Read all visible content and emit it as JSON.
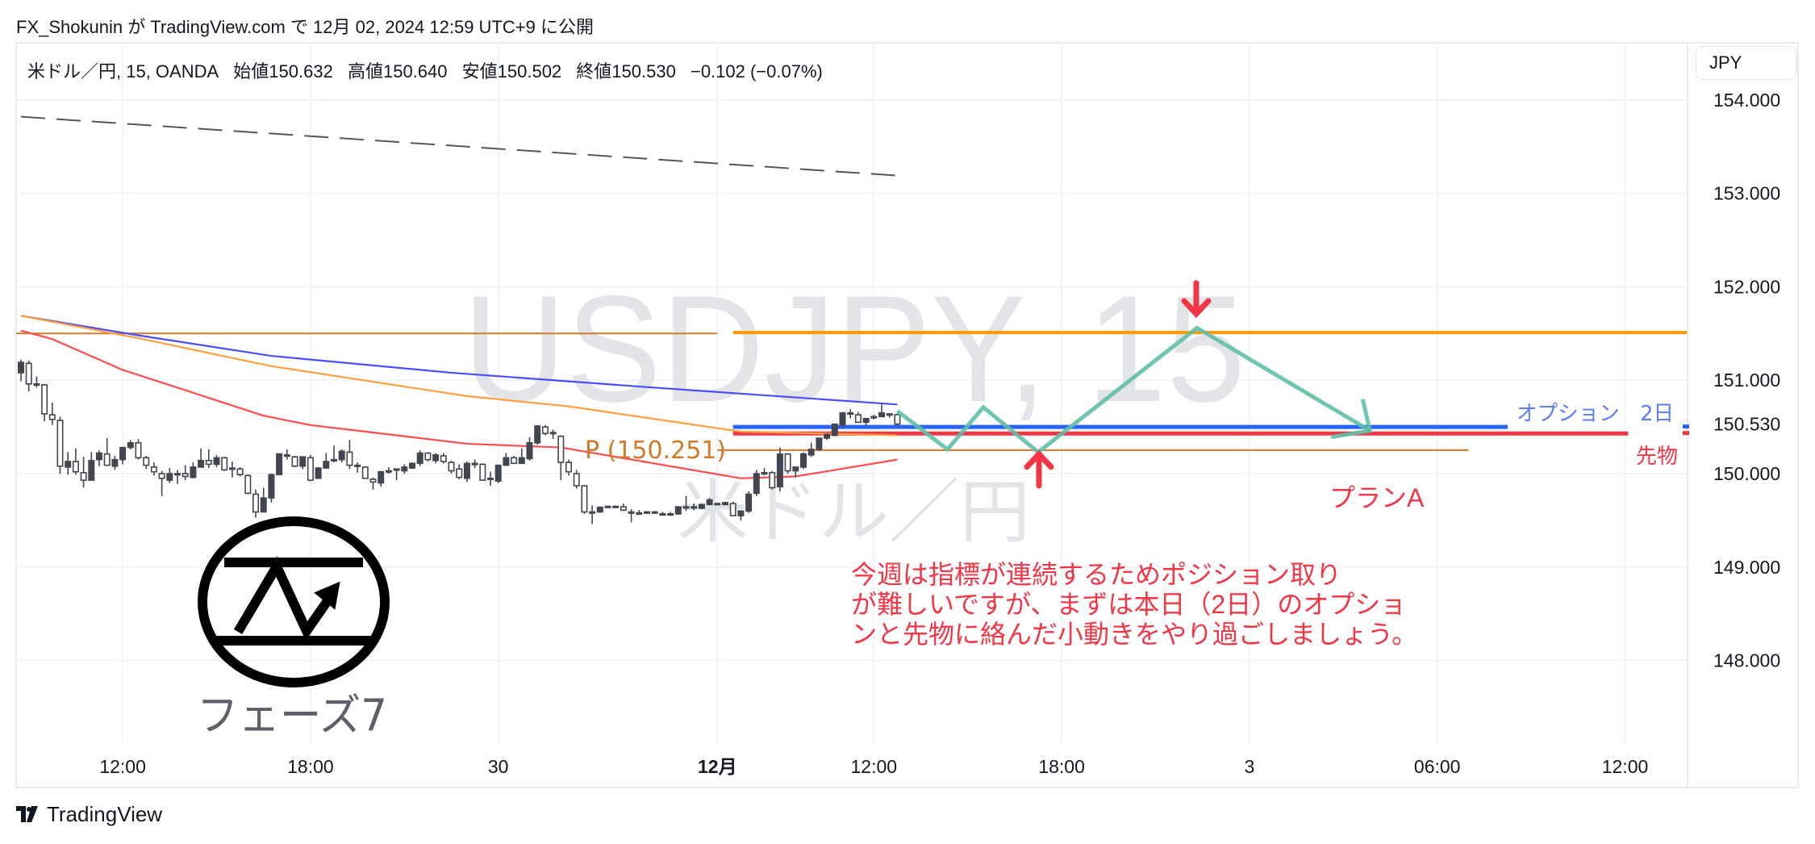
{
  "header": {
    "published": "FX_Shokunin が TradingView.com で 12月 02, 2024 12:59 UTC+9 に公開"
  },
  "legend": {
    "symbol": "米ドル／円, 15, OANDA",
    "open_label": "始値",
    "open": "150.632",
    "high_label": "高値",
    "high": "150.640",
    "low_label": "安値",
    "low": "150.502",
    "close_label": "終値",
    "close": "150.530",
    "change": "−0.102 (−0.07%)"
  },
  "currency_button": "JPY",
  "watermark": {
    "line1": "USDJPY, 15",
    "line2": "米ドル／円"
  },
  "logo": {
    "text": "フェーズ7"
  },
  "footer": {
    "brand": "TradingView"
  },
  "annotations": {
    "plan": "プランA",
    "note_lines": [
      "今週は指標が連続するためポジション取り",
      "が難しいですが、まずは本日（2日）のオプショ",
      "ンと先物に絡んだ小動きをやり過ごしましょう。"
    ],
    "pivot_label": "P (150.251)",
    "option_label": "オプション　2日",
    "futures_label": "先物"
  },
  "chart_data": {
    "type": "candlestick",
    "symbol": "USDJPY",
    "interval": "15",
    "grid": true,
    "colors": {
      "candle": "#434651",
      "grid": "#f0f3fa",
      "axis_text": "#131722"
    },
    "price_ticks": [
      "154.000",
      "153.000",
      "152.000",
      "151.000",
      "150.000",
      "149.000",
      "148.000"
    ],
    "price_tick_values": [
      154,
      153,
      152,
      151,
      150,
      149,
      148
    ],
    "last_price": {
      "value": 150.53,
      "label": "150.530"
    },
    "time_ticks": [
      {
        "label": "12:00",
        "bar": 13
      },
      {
        "label": "18:00",
        "bar": 37
      },
      {
        "label": "30",
        "bar": 61
      },
      {
        "label": "12月",
        "bar": 89,
        "bold": true
      },
      {
        "label": "12:00",
        "bar": 109
      },
      {
        "label": "18:00",
        "bar": 133
      },
      {
        "label": "3",
        "bar": 157
      },
      {
        "label": "06:00",
        "bar": 181
      },
      {
        "label": "12:00",
        "bar": 205
      }
    ],
    "candles_ohlc": [
      [
        151.08,
        151.22,
        150.99,
        151.19
      ],
      [
        151.18,
        151.21,
        150.88,
        150.96
      ],
      [
        150.96,
        151.04,
        150.92,
        150.96
      ],
      [
        150.95,
        150.96,
        150.56,
        150.64
      ],
      [
        150.63,
        150.76,
        150.52,
        150.58
      ],
      [
        150.57,
        150.61,
        150.0,
        150.08
      ],
      [
        150.07,
        150.23,
        149.99,
        150.13
      ],
      [
        150.13,
        150.27,
        149.99,
        150.02
      ],
      [
        150.01,
        150.18,
        149.85,
        149.93
      ],
      [
        149.93,
        150.23,
        149.93,
        150.14
      ],
      [
        150.15,
        150.25,
        150.08,
        150.22
      ],
      [
        150.21,
        150.38,
        150.09,
        150.09
      ],
      [
        150.08,
        150.19,
        150.04,
        150.15
      ],
      [
        150.15,
        150.28,
        150.1,
        150.28
      ],
      [
        150.28,
        150.36,
        150.26,
        150.33
      ],
      [
        150.33,
        150.37,
        150.15,
        150.17
      ],
      [
        150.17,
        150.19,
        150.05,
        150.09
      ],
      [
        150.07,
        150.12,
        149.98,
        150.02
      ],
      [
        150.0,
        150.03,
        149.76,
        149.95
      ],
      [
        149.93,
        150.06,
        149.9,
        150.0
      ],
      [
        150.0,
        150.04,
        149.89,
        150.0
      ],
      [
        150.0,
        150.09,
        149.93,
        149.97
      ],
      [
        149.96,
        150.12,
        149.95,
        150.07
      ],
      [
        150.07,
        150.27,
        150.07,
        150.14
      ],
      [
        150.14,
        150.26,
        150.06,
        150.1
      ],
      [
        150.1,
        150.2,
        150.07,
        150.17
      ],
      [
        150.17,
        150.18,
        150.03,
        150.04
      ],
      [
        150.06,
        150.13,
        149.96,
        150.06
      ],
      [
        150.05,
        150.07,
        149.97,
        149.99
      ],
      [
        149.98,
        149.99,
        149.78,
        149.79
      ],
      [
        149.78,
        149.83,
        149.53,
        149.59
      ],
      [
        149.59,
        149.85,
        149.59,
        149.74
      ],
      [
        149.74,
        150.0,
        149.69,
        149.99
      ],
      [
        149.99,
        150.22,
        149.99,
        150.21
      ],
      [
        150.2,
        150.26,
        150.15,
        150.2
      ],
      [
        150.18,
        150.19,
        150.07,
        150.08
      ],
      [
        150.08,
        150.18,
        150.05,
        150.18
      ],
      [
        150.17,
        150.2,
        149.92,
        149.93
      ],
      [
        149.95,
        150.07,
        149.95,
        150.06
      ],
      [
        150.06,
        150.22,
        150.06,
        150.13
      ],
      [
        150.15,
        150.3,
        150.12,
        150.15
      ],
      [
        150.15,
        150.26,
        150.12,
        150.24
      ],
      [
        150.23,
        150.36,
        150.05,
        150.09
      ],
      [
        150.09,
        150.12,
        150.01,
        150.09
      ],
      [
        150.07,
        150.08,
        149.95,
        149.95
      ],
      [
        149.94,
        149.96,
        149.83,
        149.91
      ],
      [
        149.9,
        150.03,
        149.86,
        150.02
      ],
      [
        150.03,
        150.07,
        150.0,
        150.03
      ],
      [
        150.05,
        150.05,
        149.93,
        150.05
      ],
      [
        150.03,
        150.1,
        150.0,
        150.07
      ],
      [
        150.06,
        150.12,
        150.05,
        150.11
      ],
      [
        150.11,
        150.25,
        150.08,
        150.22
      ],
      [
        150.22,
        150.23,
        150.13,
        150.15
      ],
      [
        150.14,
        150.22,
        150.11,
        150.2
      ],
      [
        150.19,
        150.22,
        150.11,
        150.13
      ],
      [
        150.12,
        150.14,
        150.0,
        150.03
      ],
      [
        150.05,
        150.1,
        149.94,
        149.96
      ],
      [
        149.95,
        150.13,
        149.91,
        150.11
      ],
      [
        150.11,
        150.15,
        150.06,
        150.11
      ],
      [
        150.1,
        150.11,
        149.93,
        149.93
      ],
      [
        149.95,
        150.02,
        149.87,
        149.95
      ],
      [
        149.92,
        150.09,
        149.9,
        150.09
      ],
      [
        150.09,
        150.22,
        150.09,
        150.17
      ],
      [
        150.17,
        150.19,
        150.11,
        150.11
      ],
      [
        150.11,
        150.27,
        150.11,
        150.17
      ],
      [
        150.16,
        150.39,
        150.14,
        150.33
      ],
      [
        150.33,
        150.52,
        150.31,
        150.51
      ],
      [
        150.5,
        150.52,
        150.41,
        150.43
      ],
      [
        150.44,
        150.47,
        150.37,
        150.44
      ],
      [
        150.4,
        150.41,
        149.93,
        150.12
      ],
      [
        150.12,
        150.15,
        149.98,
        150.02
      ],
      [
        150.0,
        150.04,
        149.84,
        149.87
      ],
      [
        149.87,
        149.87,
        149.57,
        149.59
      ],
      [
        149.59,
        149.66,
        149.46,
        149.59
      ],
      [
        149.59,
        149.65,
        149.58,
        149.64
      ],
      [
        149.65,
        149.66,
        149.64,
        149.65
      ],
      [
        149.65,
        149.66,
        149.64,
        149.65
      ],
      [
        149.645,
        149.68,
        149.6,
        149.61
      ],
      [
        149.59,
        149.62,
        149.48,
        149.59
      ],
      [
        149.58,
        149.61,
        149.56,
        149.58
      ],
      [
        149.59,
        149.6,
        149.57,
        149.59
      ],
      [
        149.59,
        149.6,
        149.57,
        149.59
      ],
      [
        149.57,
        149.59,
        149.55,
        149.57
      ],
      [
        149.57,
        149.59,
        149.55,
        149.57
      ],
      [
        149.57,
        149.65,
        149.56,
        149.645
      ],
      [
        149.645,
        149.76,
        149.6,
        149.645
      ],
      [
        149.645,
        149.68,
        149.61,
        149.645
      ],
      [
        149.63,
        149.68,
        149.62,
        149.67
      ],
      [
        149.67,
        149.74,
        149.66,
        149.72
      ],
      [
        149.68,
        149.69,
        149.67,
        149.68
      ],
      [
        149.67,
        149.7,
        149.66,
        149.69
      ],
      [
        149.68,
        149.7,
        149.55,
        149.55
      ],
      [
        149.55,
        149.6,
        149.5,
        149.6
      ],
      [
        149.6,
        149.81,
        149.58,
        149.78
      ],
      [
        149.79,
        150.04,
        149.76,
        150.0
      ],
      [
        150.01,
        150.06,
        149.98,
        150.01
      ],
      [
        150.01,
        150.03,
        149.83,
        149.85
      ],
      [
        149.86,
        150.28,
        149.81,
        150.21
      ],
      [
        150.21,
        150.22,
        150.0,
        150.03
      ],
      [
        150.03,
        150.07,
        149.96,
        150.07
      ],
      [
        150.07,
        150.23,
        150.05,
        150.21
      ],
      [
        150.2,
        150.33,
        150.18,
        150.26
      ],
      [
        150.26,
        150.38,
        150.24,
        150.38
      ],
      [
        150.38,
        150.43,
        150.36,
        150.42
      ],
      [
        150.41,
        150.53,
        150.4,
        150.53
      ],
      [
        150.52,
        150.66,
        150.48,
        150.65
      ],
      [
        150.65,
        150.69,
        150.59,
        150.65
      ],
      [
        150.63,
        150.66,
        150.55,
        150.55
      ],
      [
        150.55,
        150.59,
        150.51,
        150.59
      ],
      [
        150.61,
        150.63,
        150.58,
        150.61
      ],
      [
        150.61,
        150.74,
        150.61,
        150.65
      ],
      [
        150.64,
        150.64,
        150.6,
        150.64
      ],
      [
        150.632,
        150.64,
        150.502,
        150.53
      ]
    ],
    "moving_averages": [
      {
        "color": "#4a4cff",
        "points": [
          [
            0,
            151.69
          ],
          [
            15,
            151.48
          ],
          [
            32,
            151.26
          ],
          [
            55,
            151.08
          ],
          [
            81,
            150.92
          ],
          [
            112,
            150.74
          ]
        ]
      },
      {
        "color": "#ffa040",
        "points": [
          [
            0,
            151.69
          ],
          [
            15,
            151.45
          ],
          [
            32,
            151.15
          ],
          [
            57,
            150.83
          ],
          [
            70,
            150.72
          ],
          [
            92,
            150.45
          ],
          [
            112,
            150.41
          ]
        ]
      },
      {
        "color": "#ff4d4d",
        "points": [
          [
            0,
            151.53
          ],
          [
            4,
            151.44
          ],
          [
            13,
            151.11
          ],
          [
            20,
            150.92
          ],
          [
            31,
            150.62
          ],
          [
            37,
            150.52
          ],
          [
            44,
            150.45
          ],
          [
            57,
            150.32
          ],
          [
            66,
            150.29
          ],
          [
            69,
            150.28
          ],
          [
            92,
            149.95
          ],
          [
            99,
            149.97
          ],
          [
            112,
            150.15
          ]
        ]
      }
    ],
    "horizontal_lines": [
      {
        "name": "resistance-line-prev",
        "price": 151.5,
        "from_bar": -0.6,
        "to_bar": 89,
        "color": "#d4782a",
        "width": 2
      },
      {
        "name": "resistance-line",
        "price": 151.51,
        "from_bar": 91,
        "to_bar": 213,
        "color": "#ff9800",
        "width": 4
      },
      {
        "name": "pivot-line",
        "price": 150.251,
        "from_bar": 89,
        "to_bar": 185,
        "color": "#d4782a",
        "width": 2
      },
      {
        "name": "option-line",
        "price": 150.5,
        "from_bar": 91,
        "to_bar": 190,
        "color": "#2962ff",
        "width": 5
      },
      {
        "name": "futures-line",
        "price": 150.43,
        "from_bar": 91,
        "to_bar": 205.4,
        "color": "#f23645",
        "width": 5
      }
    ],
    "trend_line": {
      "color": "#555555",
      "from": [
        0,
        153.82
      ],
      "to": [
        112,
        153.19
      ],
      "dashed": true
    },
    "scenario_path": {
      "color": "#5fbfa8",
      "points": [
        [
          112,
          150.67
        ],
        [
          118.4,
          150.26
        ],
        [
          123,
          150.71
        ],
        [
          130,
          150.23
        ],
        [
          150.3,
          151.56
        ],
        [
          172.4,
          150.46
        ]
      ]
    },
    "arrows": [
      {
        "direction": "down",
        "bar": 150.2,
        "tip": 151.71,
        "tail": 152.04,
        "color": "#f23645"
      },
      {
        "direction": "up",
        "bar": 130.1,
        "tip": 150.21,
        "tail": 149.87,
        "color": "#f23645"
      }
    ]
  }
}
